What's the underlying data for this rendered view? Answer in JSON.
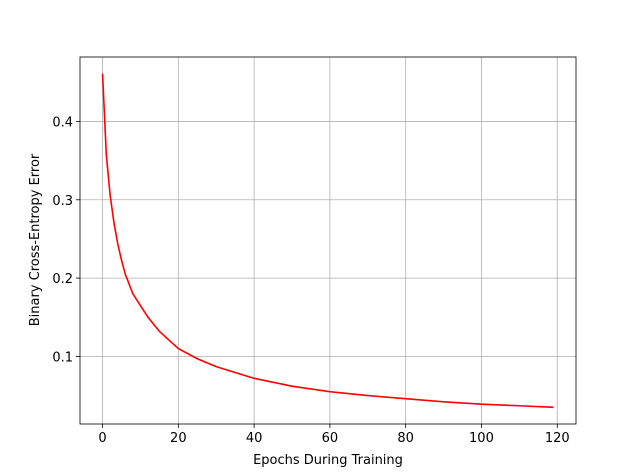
{
  "chart_data": {
    "type": "line",
    "x_label": "Epochs During Training",
    "y_label": "Binary Cross-Entropy Error",
    "x": [
      0,
      1,
      2,
      3,
      4,
      5,
      6,
      8,
      10,
      12,
      15,
      20,
      25,
      30,
      40,
      50,
      60,
      70,
      80,
      90,
      100,
      110,
      119
    ],
    "series": [
      {
        "color": "#ff0000",
        "values": [
          0.461,
          0.357,
          0.306,
          0.271,
          0.244,
          0.223,
          0.205,
          0.18,
          0.165,
          0.15,
          0.132,
          0.11,
          0.097,
          0.087,
          0.072,
          0.062,
          0.055,
          0.05,
          0.046,
          0.042,
          0.039,
          0.037,
          0.035
        ]
      }
    ],
    "xlim": [
      -5.95,
      124.95
    ],
    "xticks": [
      0,
      20,
      40,
      60,
      80,
      100,
      120
    ],
    "ylim": [
      0.0137,
      0.4823
    ],
    "yticks": [
      0.1,
      0.2,
      0.3,
      0.4
    ],
    "grid": true
  }
}
